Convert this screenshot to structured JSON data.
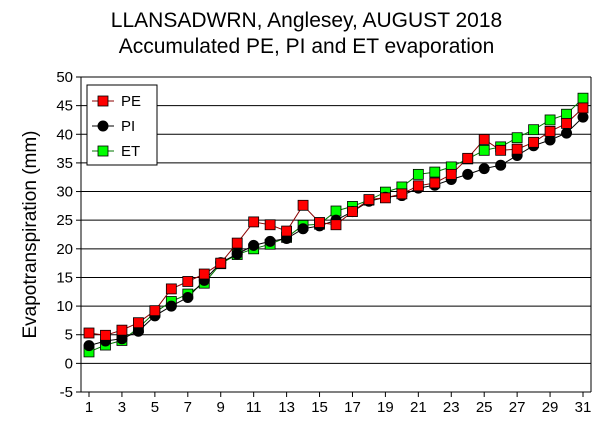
{
  "chart_data": {
    "type": "line",
    "title": "LLANSADWRN, Anglesey, AUGUST 2018",
    "subtitle": "Accumulated PE, PI and ET evaporation",
    "xlabel": "",
    "ylabel": "Evapotranspiration (mm)",
    "xlim": [
      1,
      31
    ],
    "ylim": [
      -5,
      50
    ],
    "xticks": [
      "1",
      "3",
      "5",
      "7",
      "9",
      "11",
      "13",
      "15",
      "17",
      "19",
      "21",
      "23",
      "25",
      "27",
      "29",
      "31"
    ],
    "yticks": [
      "-5",
      "0",
      "5",
      "10",
      "15",
      "20",
      "25",
      "30",
      "35",
      "40",
      "45",
      "50"
    ],
    "grid": "horizontal",
    "legend": "top-left",
    "x": [
      1,
      2,
      3,
      4,
      5,
      6,
      7,
      8,
      9,
      10,
      11,
      12,
      13,
      14,
      15,
      16,
      17,
      18,
      19,
      20,
      21,
      22,
      23,
      24,
      25,
      26,
      27,
      28,
      29,
      30,
      31
    ],
    "series": [
      {
        "name": "PE",
        "marker": "square",
        "color": "#ff0000",
        "line_color": "#8b0000",
        "values": [
          5.3,
          4.9,
          5.8,
          7.1,
          9.2,
          13.0,
          14.3,
          15.6,
          17.5,
          21.0,
          24.7,
          24.2,
          23.1,
          27.6,
          24.6,
          24.2,
          26.5,
          28.6,
          28.9,
          29.6,
          31.0,
          31.5,
          33.0,
          35.8,
          39.1,
          37.2,
          37.4,
          38.6,
          40.5,
          41.9,
          44.6
        ]
      },
      {
        "name": "PI",
        "marker": "circle",
        "color": "#000000",
        "line_color": "#000000",
        "values": [
          3.1,
          3.9,
          4.3,
          5.6,
          8.3,
          10.0,
          11.5,
          14.5,
          17.6,
          19.1,
          20.6,
          21.3,
          21.8,
          23.5,
          24.0,
          25.0,
          26.5,
          28.3,
          29.0,
          29.3,
          30.6,
          31.1,
          32.1,
          33.0,
          34.0,
          34.6,
          36.3,
          38.0,
          39.0,
          40.2,
          43.0
        ]
      },
      {
        "name": "ET",
        "marker": "square",
        "color": "#00ff00",
        "line_color": "#007700",
        "values": [
          2.0,
          3.2,
          4.0,
          6.2,
          8.9,
          10.8,
          12.1,
          14.0,
          17.4,
          19.0,
          20.0,
          20.8,
          22.0,
          24.1,
          24.3,
          26.6,
          27.4,
          28.5,
          29.9,
          30.8,
          33.0,
          33.4,
          34.3,
          35.7,
          37.2,
          37.8,
          39.4,
          40.8,
          42.5,
          43.5,
          46.3
        ]
      }
    ]
  }
}
